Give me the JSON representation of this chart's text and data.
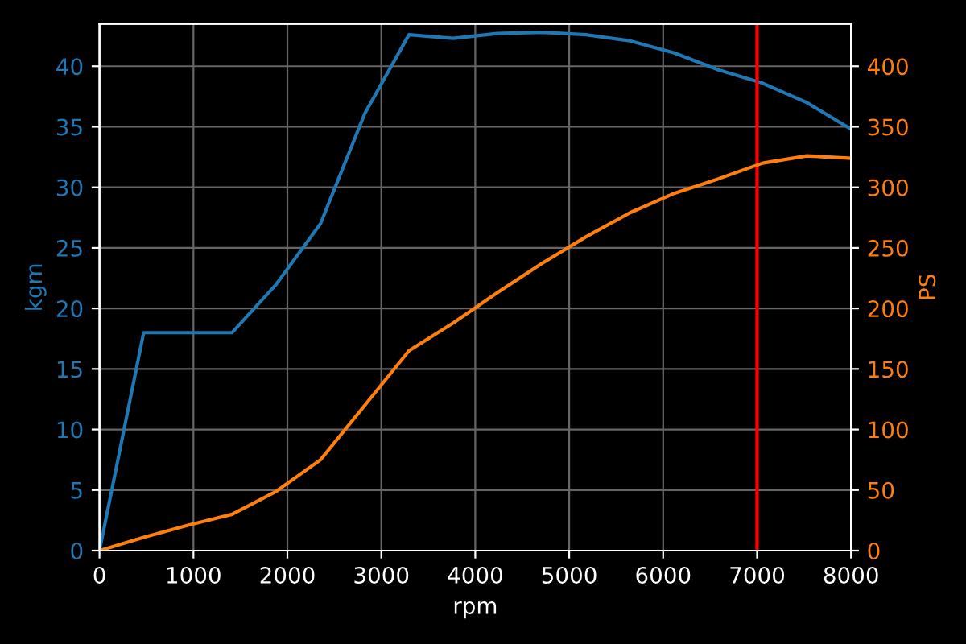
{
  "chart_data": {
    "type": "line",
    "xlabel": "rpm",
    "ylabel": "kgm",
    "y2label": "PS",
    "x": [
      0,
      470,
      941,
      1412,
      1882,
      2353,
      2824,
      3294,
      3765,
      4235,
      4706,
      5176,
      5647,
      6118,
      6588,
      7059,
      7529,
      8000
    ],
    "series": [
      {
        "color": "#1f77b4",
        "values": [
          0,
          18.0,
          18.0,
          18.0,
          22.0,
          27.0,
          36.1,
          42.6,
          42.3,
          42.7,
          42.8,
          42.6,
          42.1,
          41.1,
          39.7,
          38.6,
          37.0,
          34.8
        ]
      },
      {
        "color": "#ff7f0e",
        "axis": "y2",
        "values": [
          0,
          11,
          21,
          30,
          49,
          75,
          120,
          165,
          188,
          213,
          237,
          259,
          279,
          295,
          307,
          320,
          326,
          324
        ]
      }
    ],
    "xlim": [
      0,
      8000
    ],
    "xticks": [
      0,
      1000,
      2000,
      3000,
      4000,
      5000,
      6000,
      7000,
      8000
    ],
    "ylim": [
      0,
      43.5
    ],
    "yticks": [
      0,
      5,
      10,
      15,
      20,
      25,
      30,
      35,
      40
    ],
    "y2lim": [
      0,
      435
    ],
    "y2ticks": [
      0,
      50,
      100,
      150,
      200,
      250,
      300,
      350,
      400
    ],
    "ref_lines": [
      {
        "axis": "x",
        "value": 7000,
        "color": "#ff0000"
      }
    ],
    "grid": true,
    "legend": false
  }
}
